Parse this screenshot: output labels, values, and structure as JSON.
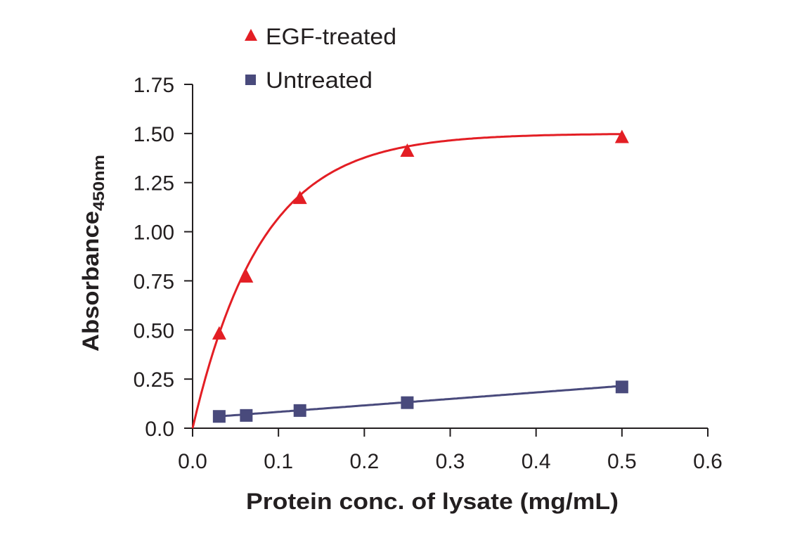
{
  "chart_data": {
    "type": "scatter",
    "title": "",
    "xlabel": "Protein conc. of lysate (mg/mL)",
    "ylabel": "Absorbance",
    "ylabel_subscript": "450nm",
    "xlim": [
      0,
      0.6
    ],
    "ylim": [
      0,
      1.75
    ],
    "xticks": [
      "0.0",
      "0.1",
      "0.2",
      "0.3",
      "0.4",
      "0.5",
      "0.6"
    ],
    "yticks": [
      "0.0",
      "0.25",
      "0.50",
      "0.75",
      "1.00",
      "1.25",
      "1.50",
      "1.75"
    ],
    "grid": false,
    "legend_position": "top-left",
    "series": [
      {
        "name": "EGF-treated",
        "color": "#e31e24",
        "marker": "triangle",
        "x": [
          0.031,
          0.0625,
          0.125,
          0.25,
          0.5
        ],
        "y": [
          0.48,
          0.77,
          1.17,
          1.41,
          1.48
        ],
        "fit": {
          "type": "exponential-rise",
          "ymax": 1.5,
          "tau": 0.08
        }
      },
      {
        "name": "Untreated",
        "color": "#494a7c",
        "marker": "square",
        "x": [
          0.031,
          0.0625,
          0.125,
          0.25,
          0.5
        ],
        "y": [
          0.06,
          0.065,
          0.09,
          0.13,
          0.21
        ],
        "fit": {
          "type": "linear",
          "intercept": 0.05,
          "slope": 0.33
        }
      }
    ]
  }
}
